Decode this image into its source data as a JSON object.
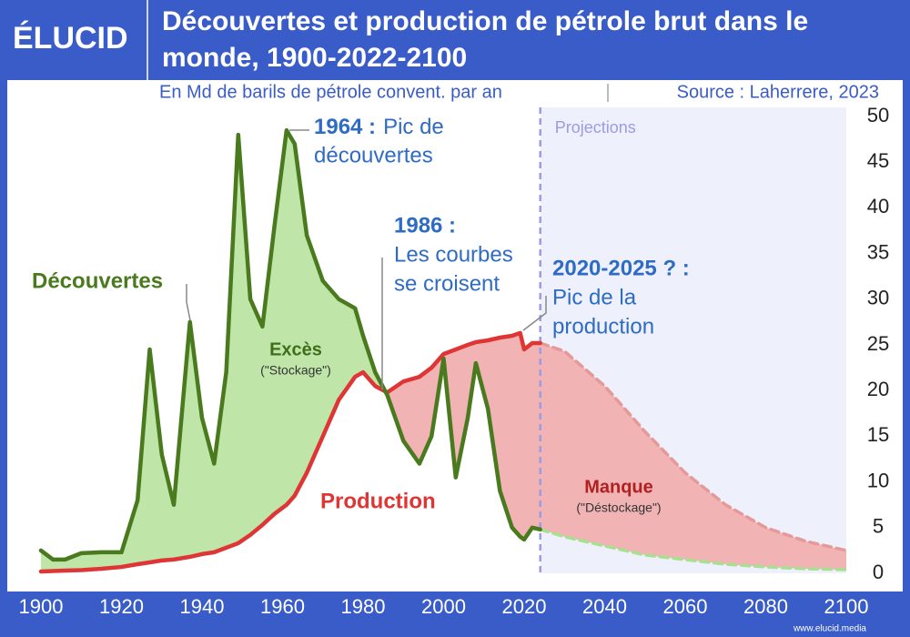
{
  "header": {
    "logo": "ÉLUCID",
    "title": "Découvertes et production de pétrole brut dans le monde, 1900-2022-2100",
    "subtitle": "En Md de barils de pétrole convent. par an",
    "source": "Source : Laherrere, 2023"
  },
  "footer": "www.elucid.media",
  "chart_data": {
    "type": "line",
    "x": [
      1900,
      1903,
      1906,
      1910,
      1915,
      1920,
      1924,
      1927,
      1930,
      1933,
      1937,
      1940,
      1943,
      1946,
      1949,
      1952,
      1955,
      1958,
      1961,
      1963,
      1966,
      1970,
      1974,
      1978,
      1980,
      1983,
      1986,
      1990,
      1994,
      1997,
      2000,
      2003,
      2006,
      2008,
      2011,
      2014,
      2017,
      2019,
      2020,
      2022,
      2024,
      2030,
      2040,
      2050,
      2060,
      2070,
      2080,
      2090,
      2100
    ],
    "series": [
      {
        "name": "Découvertes",
        "color": "#4a7a1e",
        "projection_color": "#a8e090",
        "values": [
          2.5,
          1.5,
          1.5,
          2.2,
          2.3,
          2.3,
          8,
          24.5,
          13,
          7.5,
          27.5,
          17,
          12,
          22,
          48,
          30,
          27,
          38,
          48.5,
          47,
          37,
          32,
          30,
          29,
          26,
          22,
          19.5,
          14.5,
          12,
          15,
          23.5,
          10.5,
          17,
          23,
          18,
          9,
          5,
          4,
          3.7,
          5,
          4.8,
          4,
          3,
          2,
          1.5,
          1,
          0.7,
          0.5,
          0.4
        ]
      },
      {
        "name": "Production",
        "color": "#e03535",
        "projection_color": "#e59a9a",
        "values": [
          0.2,
          0.25,
          0.3,
          0.35,
          0.5,
          0.7,
          1,
          1.2,
          1.4,
          1.5,
          1.8,
          2.1,
          2.3,
          2.8,
          3.3,
          4.2,
          5.3,
          6.5,
          7.5,
          8.5,
          11,
          15,
          19,
          21.5,
          22,
          20.5,
          19.8,
          21,
          21.5,
          22.5,
          24,
          24.5,
          25,
          25.3,
          25.5,
          25.8,
          26,
          26.3,
          24.5,
          25.2,
          25.2,
          24.3,
          20.5,
          15.5,
          11,
          7.5,
          5,
          3.5,
          2.5
        ]
      }
    ],
    "areas": [
      {
        "label": "Excès",
        "sublabel": "(\"Stockage\")",
        "color": "#bfe6a8",
        "text_color": "#3f6e1a"
      },
      {
        "label": "Manque",
        "sublabel": "(\"Déstockage\")",
        "color": "#f1b3b3",
        "text_color": "#b02020"
      }
    ],
    "projection": {
      "label": "Projections",
      "x": 2024,
      "color": "#9b9be6",
      "background": "#eef0fb"
    },
    "annotations": [
      {
        "title": "1964 :",
        "lines": [
          "Pic de",
          "découvertes"
        ]
      },
      {
        "title": "1986 :",
        "lines": [
          "Les courbes",
          "se croisent"
        ]
      },
      {
        "title": "2020-2025 ? :",
        "lines": [
          "Pic de la",
          "production"
        ]
      }
    ],
    "xlim": [
      1900,
      2100
    ],
    "xticks": [
      1900,
      1920,
      1940,
      1960,
      1980,
      2000,
      2020,
      2040,
      2060,
      2080,
      2100
    ],
    "ylim": [
      0,
      50
    ],
    "yticks": [
      0,
      5,
      10,
      15,
      20,
      25,
      30,
      35,
      40,
      45,
      50
    ],
    "grid": false
  }
}
